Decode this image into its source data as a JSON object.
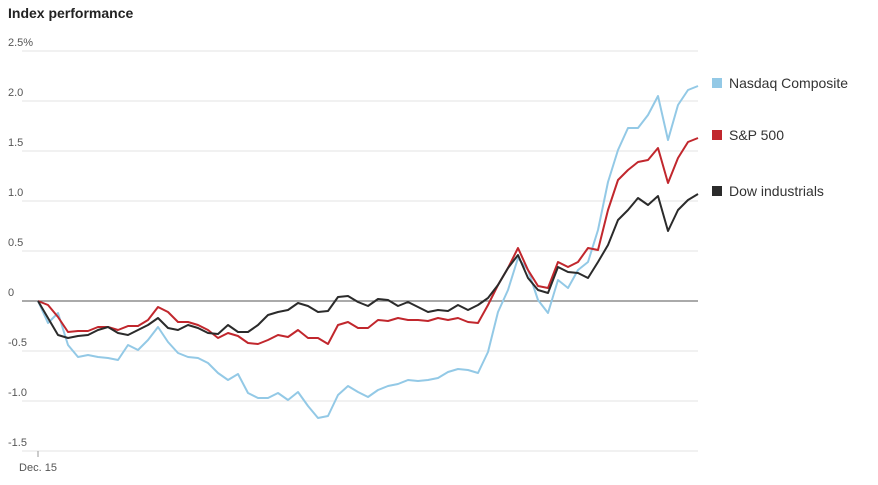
{
  "chart_data": {
    "type": "line",
    "title": "Index performance",
    "categories": [
      "Dec. 15",
      null,
      null,
      null,
      null,
      null,
      null,
      null,
      null,
      null,
      null,
      null,
      null,
      null,
      null,
      null,
      null,
      null,
      null,
      null,
      null,
      null,
      null,
      null,
      null,
      null,
      null,
      null,
      null,
      null,
      null,
      null,
      null,
      null,
      null,
      null,
      null,
      null,
      null,
      null,
      null,
      null,
      null,
      null,
      null,
      null,
      null,
      null,
      null,
      null,
      null,
      null,
      null,
      null,
      null,
      null,
      null,
      null,
      null,
      null,
      null,
      null,
      null,
      null,
      null,
      null,
      null
    ],
    "series": [
      {
        "name": "Nasdaq Composite",
        "color": "#93c9e6",
        "values": [
          0,
          -0.22,
          -0.12,
          -0.44,
          -0.56,
          -0.54,
          -0.56,
          -0.57,
          -0.59,
          -0.44,
          -0.49,
          -0.39,
          -0.26,
          -0.41,
          -0.52,
          -0.56,
          -0.57,
          -0.62,
          -0.72,
          -0.79,
          -0.73,
          -0.92,
          -0.97,
          -0.97,
          -0.92,
          -0.99,
          -0.91,
          -1.05,
          -1.17,
          -1.15,
          -0.94,
          -0.85,
          -0.91,
          -0.96,
          -0.89,
          -0.85,
          -0.83,
          -0.79,
          -0.8,
          -0.79,
          -0.77,
          -0.71,
          -0.68,
          -0.69,
          -0.72,
          -0.51,
          -0.11,
          0.11,
          0.43,
          0.31,
          0.01,
          -0.12,
          0.21,
          0.13,
          0.31,
          0.39,
          0.71,
          1.19,
          1.51,
          1.73,
          1.73,
          1.86,
          2.05,
          1.61,
          1.96,
          2.11,
          2.15
        ]
      },
      {
        "name": "S&P 500",
        "color": "#c1272d",
        "values": [
          0,
          -0.04,
          -0.16,
          -0.31,
          -0.3,
          -0.3,
          -0.26,
          -0.26,
          -0.29,
          -0.25,
          -0.25,
          -0.19,
          -0.06,
          -0.11,
          -0.21,
          -0.21,
          -0.24,
          -0.29,
          -0.37,
          -0.32,
          -0.35,
          -0.42,
          -0.43,
          -0.39,
          -0.34,
          -0.36,
          -0.29,
          -0.37,
          -0.37,
          -0.43,
          -0.24,
          -0.21,
          -0.27,
          -0.27,
          -0.19,
          -0.2,
          -0.17,
          -0.19,
          -0.19,
          -0.2,
          -0.17,
          -0.19,
          -0.17,
          -0.21,
          -0.22,
          -0.04,
          0.16,
          0.33,
          0.53,
          0.31,
          0.15,
          0.13,
          0.39,
          0.34,
          0.39,
          0.53,
          0.51,
          0.91,
          1.21,
          1.31,
          1.39,
          1.41,
          1.53,
          1.18,
          1.43,
          1.59,
          1.63
        ]
      },
      {
        "name": "Dow industrials",
        "color": "#2b2b2b",
        "values": [
          0,
          -0.17,
          -0.34,
          -0.37,
          -0.35,
          -0.34,
          -0.29,
          -0.26,
          -0.32,
          -0.34,
          -0.29,
          -0.24,
          -0.17,
          -0.27,
          -0.29,
          -0.24,
          -0.27,
          -0.32,
          -0.33,
          -0.24,
          -0.31,
          -0.31,
          -0.24,
          -0.14,
          -0.11,
          -0.09,
          -0.02,
          -0.05,
          -0.11,
          -0.1,
          0.04,
          0.05,
          -0.01,
          -0.05,
          0.02,
          0.01,
          -0.05,
          -0.01,
          -0.06,
          -0.11,
          -0.09,
          -0.1,
          -0.04,
          -0.09,
          -0.04,
          0.03,
          0.16,
          0.33,
          0.46,
          0.23,
          0.11,
          0.08,
          0.34,
          0.29,
          0.28,
          0.23,
          0.39,
          0.56,
          0.81,
          0.91,
          1.03,
          0.96,
          1.05,
          0.7,
          0.91,
          1.01,
          1.07
        ]
      }
    ],
    "ylim": [
      -1.5,
      2.5
    ],
    "yticks": [
      -1.5,
      {
        "value": -1,
        "label": "-1.0"
      },
      -0.5,
      0,
      0.5,
      {
        "value": 1,
        "label": "1.0"
      },
      1.5,
      {
        "value": 2,
        "label": "2.0"
      },
      {
        "value": 2.5,
        "label": "2.5%"
      }
    ],
    "grid": true
  }
}
